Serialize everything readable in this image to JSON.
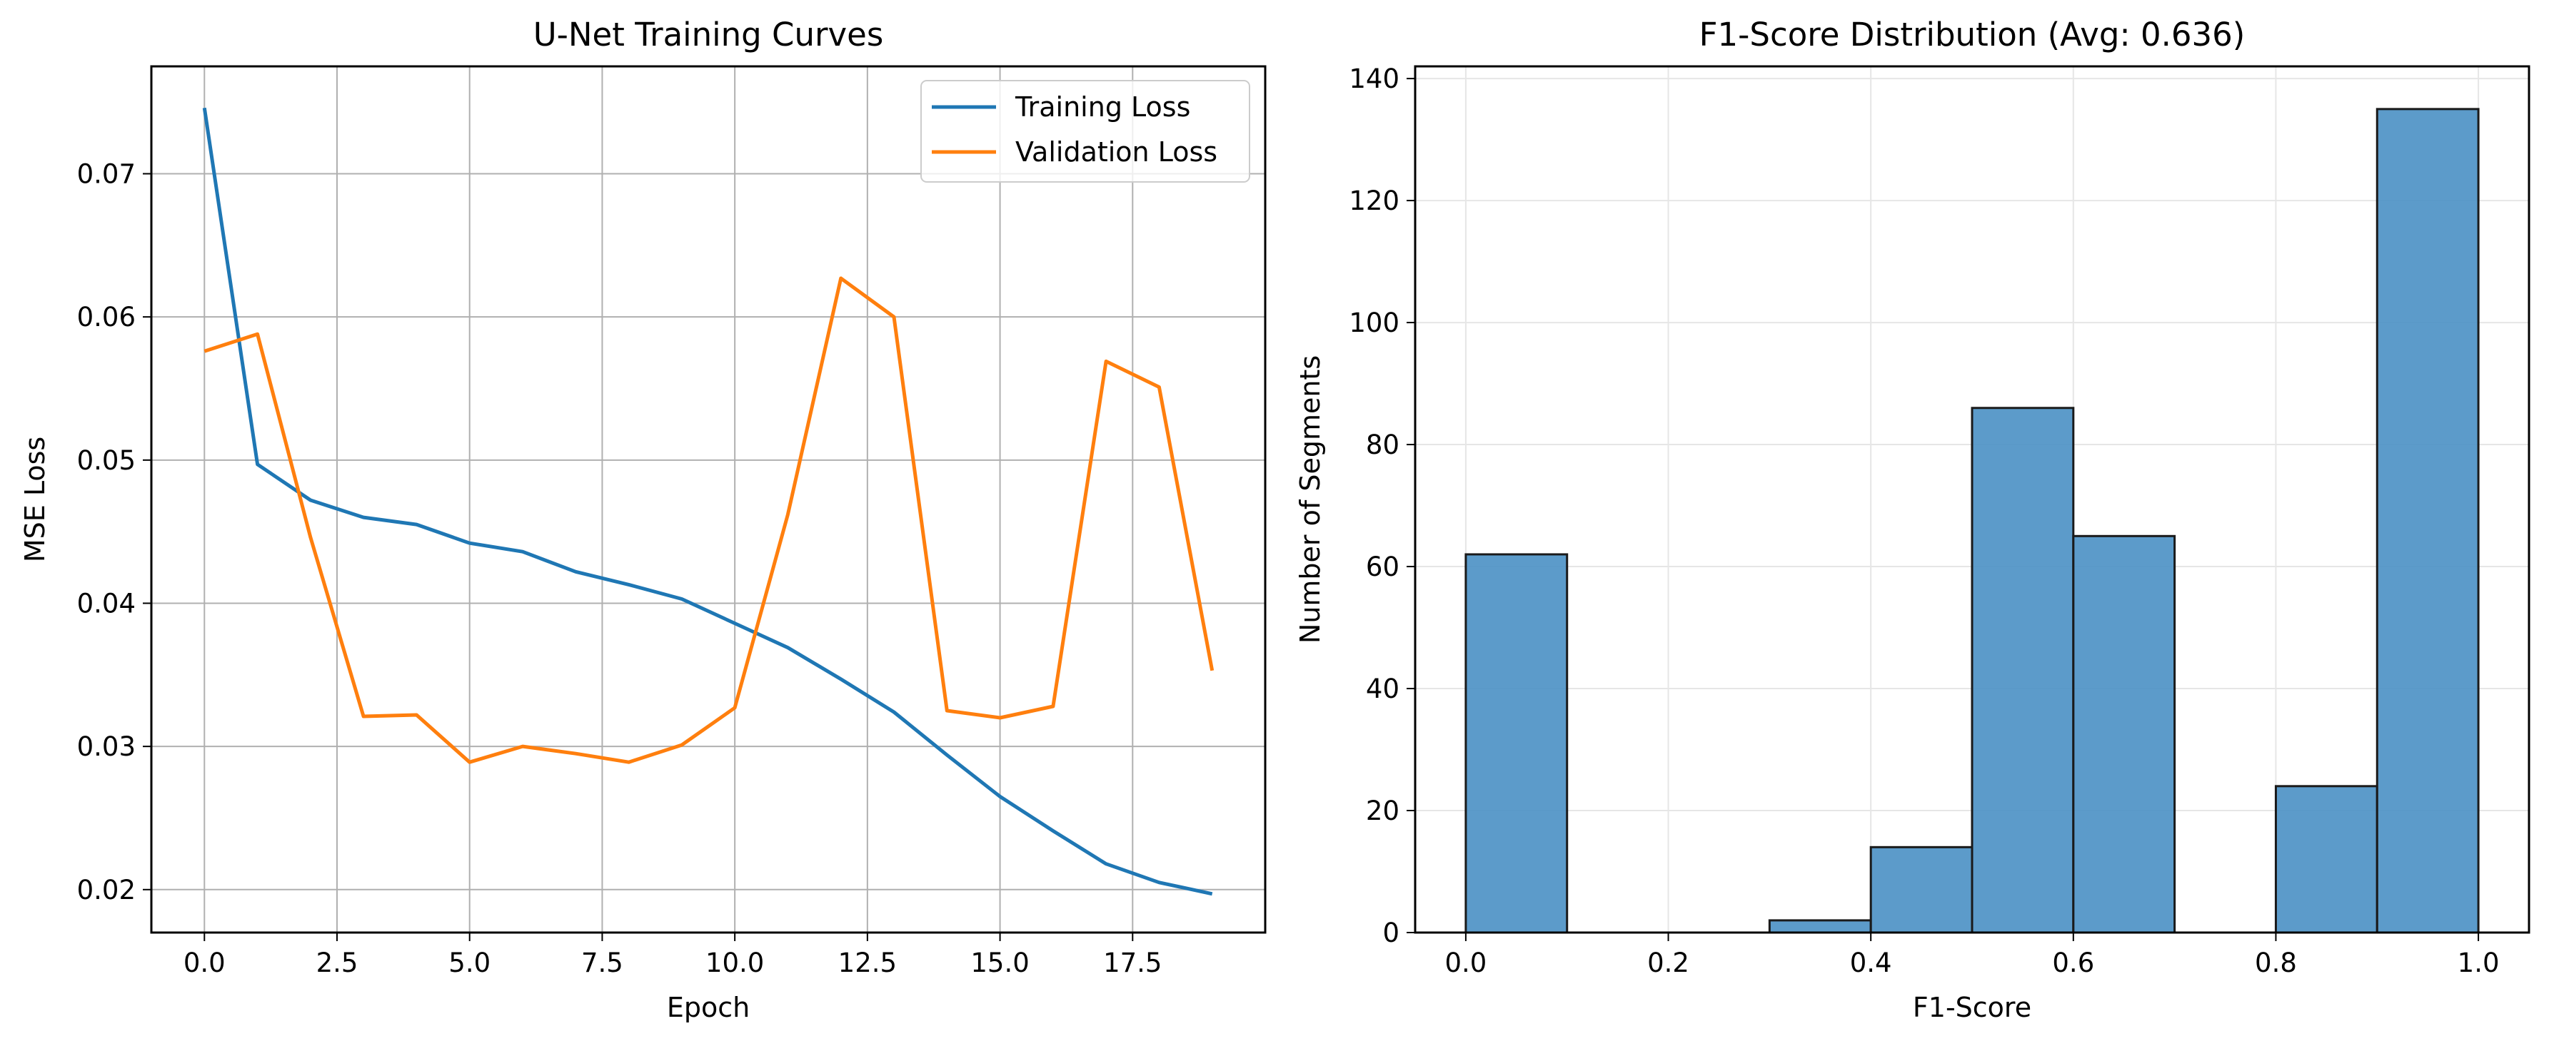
{
  "chart_data": [
    {
      "type": "line",
      "title": "U-Net Training Curves",
      "xlabel": "Epoch",
      "ylabel": "MSE Loss",
      "xlim": [
        -1,
        20
      ],
      "ylim": [
        0.017,
        0.0775
      ],
      "xticks": [
        0,
        2.5,
        5,
        7.5,
        10,
        12.5,
        15,
        17.5
      ],
      "xtick_labels": [
        "0.0",
        "2.5",
        "5.0",
        "7.5",
        "10.0",
        "12.5",
        "15.0",
        "17.5"
      ],
      "yticks": [
        0.02,
        0.03,
        0.04,
        0.05,
        0.06,
        0.07
      ],
      "ytick_labels": [
        "0.02",
        "0.03",
        "0.04",
        "0.05",
        "0.06",
        "0.07"
      ],
      "grid": true,
      "legend_position": "top-right",
      "x": [
        0,
        1,
        2,
        3,
        4,
        5,
        6,
        7,
        8,
        9,
        10,
        11,
        12,
        13,
        14,
        15,
        16,
        17,
        18,
        19
      ],
      "series": [
        {
          "name": "Training Loss",
          "color": "#1f77b4",
          "values": [
            0.0746,
            0.0497,
            0.0472,
            0.046,
            0.0455,
            0.0442,
            0.0436,
            0.0422,
            0.0413,
            0.0403,
            0.0386,
            0.0369,
            0.0347,
            0.0324,
            0.0294,
            0.0265,
            0.0241,
            0.0218,
            0.0205,
            0.0197
          ]
        },
        {
          "name": "Validation Loss",
          "color": "#ff7f0e",
          "values": [
            0.0576,
            0.0588,
            0.0446,
            0.0321,
            0.0322,
            0.0289,
            0.03,
            0.0295,
            0.0289,
            0.0301,
            0.0327,
            0.0462,
            0.0627,
            0.06,
            0.0325,
            0.032,
            0.0328,
            0.0569,
            0.0551,
            0.0353
          ]
        }
      ]
    },
    {
      "type": "bar",
      "title": "F1-Score Distribution (Avg: 0.636)",
      "xlabel": "F1-Score",
      "ylabel": "Number of Segments",
      "xlim": [
        -0.05,
        1.05
      ],
      "ylim": [
        0,
        142
      ],
      "xticks": [
        0,
        0.2,
        0.4,
        0.6,
        0.8,
        1.0
      ],
      "xtick_labels": [
        "0.0",
        "0.2",
        "0.4",
        "0.6",
        "0.8",
        "1.0"
      ],
      "yticks": [
        0,
        20,
        40,
        60,
        80,
        100,
        120,
        140
      ],
      "ytick_labels": [
        "0",
        "20",
        "40",
        "60",
        "80",
        "100",
        "120",
        "140"
      ],
      "grid": true,
      "bar_color": "#4a90c4",
      "bin_edges": [
        0.0,
        0.1,
        0.2,
        0.3,
        0.4,
        0.5,
        0.6,
        0.7,
        0.8,
        0.9,
        1.0
      ],
      "values": [
        62,
        0,
        0,
        2,
        14,
        86,
        65,
        0,
        24,
        135
      ]
    }
  ]
}
